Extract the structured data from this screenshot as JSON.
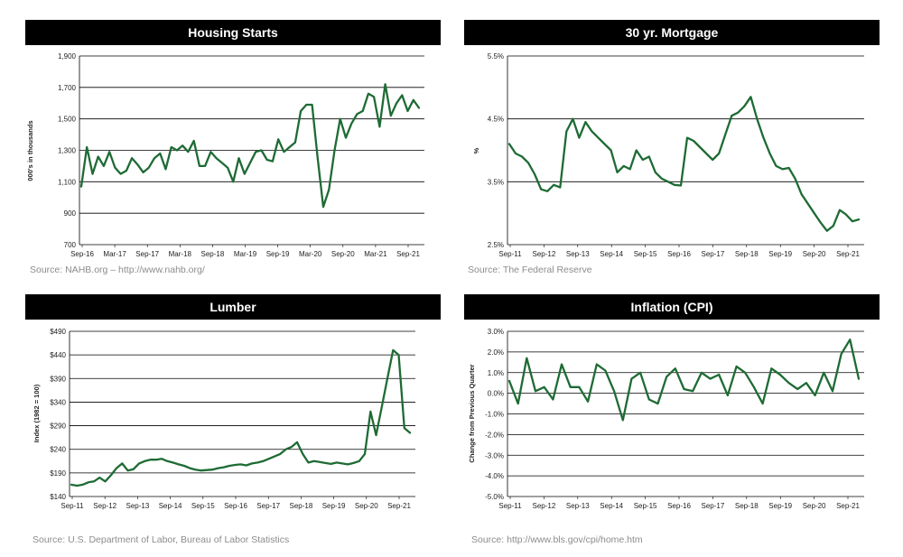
{
  "panels": {
    "housing": {
      "title": "Housing Starts",
      "source": "Source: NAHB.org – http://www.nahb.org/"
    },
    "mortgage": {
      "title": "30 yr. Mortgage",
      "source": "Source:  The Federal Reserve"
    },
    "lumber": {
      "title": "Lumber",
      "source": "Source:  U.S. Department of Labor, Bureau of Labor Statistics"
    },
    "cpi": {
      "title": "Inflation (CPI)",
      "source": "Source: http://www.bls.gov/cpi/home.htm"
    }
  },
  "colors": {
    "line": "#1e6b34",
    "header_bg": "#000000",
    "grid": "#000000"
  },
  "chart_data": [
    {
      "id": "housing",
      "type": "line",
      "title": "Housing Starts",
      "ylabel": "000's in thousands",
      "ylim": [
        700,
        1900
      ],
      "yticks": [
        700,
        900,
        1100,
        1300,
        1500,
        1700,
        1900
      ],
      "ytick_labels": [
        "700",
        "900",
        "1,100",
        "1,300",
        "1,500",
        "1,700",
        "1,900"
      ],
      "x_tick_labels": [
        "Sep-16",
        "Mar-17",
        "Sep-17",
        "Mar-18",
        "Sep-18",
        "Mar-19",
        "Sep-19",
        "Mar-20",
        "Sep-20",
        "Mar-21",
        "Sep-21"
      ],
      "x_start": "Sep-16",
      "x_end": "Oct-21",
      "grid": true,
      "series": [
        {
          "values": [
            1070,
            1320,
            1150,
            1260,
            1200,
            1290,
            1190,
            1150,
            1170,
            1250,
            1210,
            1160,
            1190,
            1250,
            1280,
            1180,
            1320,
            1300,
            1330,
            1290,
            1360,
            1200,
            1200,
            1290,
            1250,
            1220,
            1190,
            1100,
            1250,
            1150,
            1220,
            1290,
            1300,
            1240,
            1230,
            1370,
            1290,
            1320,
            1350,
            1550,
            1590,
            1590,
            1250,
            940,
            1050,
            1300,
            1500,
            1380,
            1470,
            1530,
            1550,
            1660,
            1640,
            1450,
            1720,
            1520,
            1600,
            1650,
            1550,
            1620,
            1570
          ]
        }
      ]
    },
    {
      "id": "mortgage",
      "type": "line",
      "title": "30 yr. Mortgage",
      "ylabel": "%",
      "ylim": [
        2.5,
        5.5
      ],
      "yticks": [
        2.5,
        3.5,
        4.5,
        5.5
      ],
      "ytick_labels": [
        "2.5%",
        "3.5%",
        "4.5%",
        "5.5%"
      ],
      "x_tick_labels": [
        "Sep-11",
        "Sep-12",
        "Sep-13",
        "Sep-14",
        "Sep-15",
        "Sep-16",
        "Sep-17",
        "Sep-18",
        "Sep-19",
        "Sep-20",
        "Sep-21"
      ],
      "x_start": "Sep-11",
      "x_end": "Oct-21",
      "grid": true,
      "series": [
        {
          "values": [
            4.1,
            3.95,
            3.9,
            3.8,
            3.62,
            3.38,
            3.35,
            3.45,
            3.41,
            4.3,
            4.5,
            4.2,
            4.45,
            4.3,
            4.2,
            4.1,
            4.0,
            3.65,
            3.75,
            3.7,
            4.0,
            3.85,
            3.9,
            3.65,
            3.55,
            3.5,
            3.45,
            3.44,
            4.2,
            4.15,
            4.05,
            3.95,
            3.85,
            3.95,
            4.25,
            4.55,
            4.6,
            4.7,
            4.85,
            4.5,
            4.2,
            3.95,
            3.75,
            3.7,
            3.72,
            3.55,
            3.3,
            3.15,
            3.0,
            2.85,
            2.72,
            2.8,
            3.05,
            2.98,
            2.87,
            2.9
          ]
        }
      ]
    },
    {
      "id": "lumber",
      "type": "line",
      "title": "Lumber",
      "ylabel": "Index (1982 = 100)",
      "ylim": [
        140,
        490
      ],
      "yticks": [
        140,
        190,
        240,
        290,
        340,
        390,
        440,
        490
      ],
      "ytick_labels": [
        "$140",
        "$190",
        "$240",
        "$290",
        "$340",
        "$390",
        "$440",
        "$490"
      ],
      "x_tick_labels": [
        "Sep-11",
        "Sep-12",
        "Sep-13",
        "Sep-14",
        "Sep-15",
        "Sep-16",
        "Sep-17",
        "Sep-18",
        "Sep-19",
        "Sep-20",
        "Sep-21"
      ],
      "x_start": "Sep-11",
      "x_end": "Oct-21",
      "grid": true,
      "series": [
        {
          "values": [
            165,
            163,
            165,
            170,
            172,
            180,
            172,
            185,
            200,
            210,
            195,
            198,
            210,
            215,
            218,
            218,
            220,
            215,
            212,
            208,
            205,
            200,
            197,
            195,
            196,
            197,
            200,
            202,
            205,
            207,
            208,
            206,
            210,
            212,
            215,
            220,
            225,
            230,
            240,
            245,
            255,
            230,
            212,
            215,
            213,
            211,
            209,
            212,
            210,
            208,
            211,
            215,
            230,
            320,
            270,
            330,
            390,
            450,
            440,
            285,
            275
          ]
        }
      ]
    },
    {
      "id": "cpi",
      "type": "line",
      "title": "Inflation (CPI)",
      "ylabel": "Change from Previous Quarter",
      "ylim": [
        -5.0,
        3.0
      ],
      "yticks": [
        -5,
        -4,
        -3,
        -2,
        -1,
        0,
        1,
        2,
        3
      ],
      "ytick_labels": [
        "-5.0%",
        "-4.0%",
        "-3.0%",
        "-2.0%",
        "-1.0%",
        "0.0%",
        "1.0%",
        "2.0%",
        "3.0%"
      ],
      "x_tick_labels": [
        "Sep-11",
        "Sep-12",
        "Sep-13",
        "Sep-14",
        "Sep-15",
        "Sep-16",
        "Sep-17",
        "Sep-18",
        "Sep-19",
        "Sep-20",
        "Sep-21"
      ],
      "x_start": "Sep-11",
      "x_end": "Oct-21",
      "grid": true,
      "series": [
        {
          "values": [
            0.6,
            -0.5,
            1.7,
            0.1,
            0.3,
            -0.3,
            1.4,
            0.3,
            0.3,
            -0.4,
            1.4,
            1.1,
            0.1,
            -1.3,
            0.7,
            1.0,
            -0.3,
            -0.5,
            0.8,
            1.2,
            0.2,
            0.1,
            1.0,
            0.7,
            0.9,
            -0.1,
            1.3,
            1.0,
            0.3,
            -0.5,
            1.2,
            0.9,
            0.5,
            0.2,
            0.5,
            -0.1,
            1.0,
            0.1,
            1.9,
            2.6,
            0.7
          ]
        }
      ]
    }
  ]
}
